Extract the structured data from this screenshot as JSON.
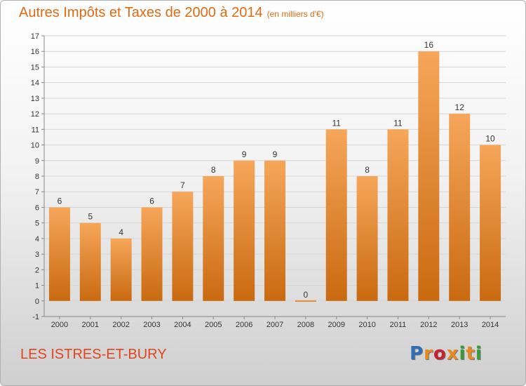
{
  "header": {
    "title": "Autres Impôts et Taxes de 2000 à 2014",
    "unit": "(en milliers d'€)"
  },
  "footer": {
    "commune": "LES ISTRES-ET-BURY"
  },
  "logo": {
    "letters": [
      "P",
      "r",
      "o",
      "x",
      "i",
      "t",
      "i"
    ],
    "colors": [
      "#2f6fb5",
      "#e58a1f",
      "#c8202e",
      "#e58a1f",
      "#3b9b3b",
      "#e58a1f",
      "#3b9b3b"
    ]
  },
  "colors": {
    "bar_top": "#f6a65a",
    "bar_bottom": "#c96a10",
    "grid": "#d6d6d6",
    "axis": "#888888"
  },
  "chart_data": {
    "type": "bar",
    "title": "Autres Impôts et Taxes de 2000 à 2014",
    "subtitle": "(en milliers d'€)",
    "categories": [
      "2000",
      "2001",
      "2002",
      "2003",
      "2004",
      "2005",
      "2006",
      "2007",
      "2008",
      "2009",
      "2010",
      "2011",
      "2012",
      "2013",
      "2014"
    ],
    "values": [
      6,
      5,
      4,
      6,
      7,
      8,
      9,
      9,
      0,
      11,
      8,
      11,
      16,
      12,
      10
    ],
    "ylim": [
      -1,
      17
    ],
    "yticks": [
      -1,
      0,
      1,
      2,
      3,
      4,
      5,
      6,
      7,
      8,
      9,
      10,
      11,
      12,
      13,
      14,
      15,
      16,
      17
    ],
    "grid": true,
    "legend": "none"
  }
}
